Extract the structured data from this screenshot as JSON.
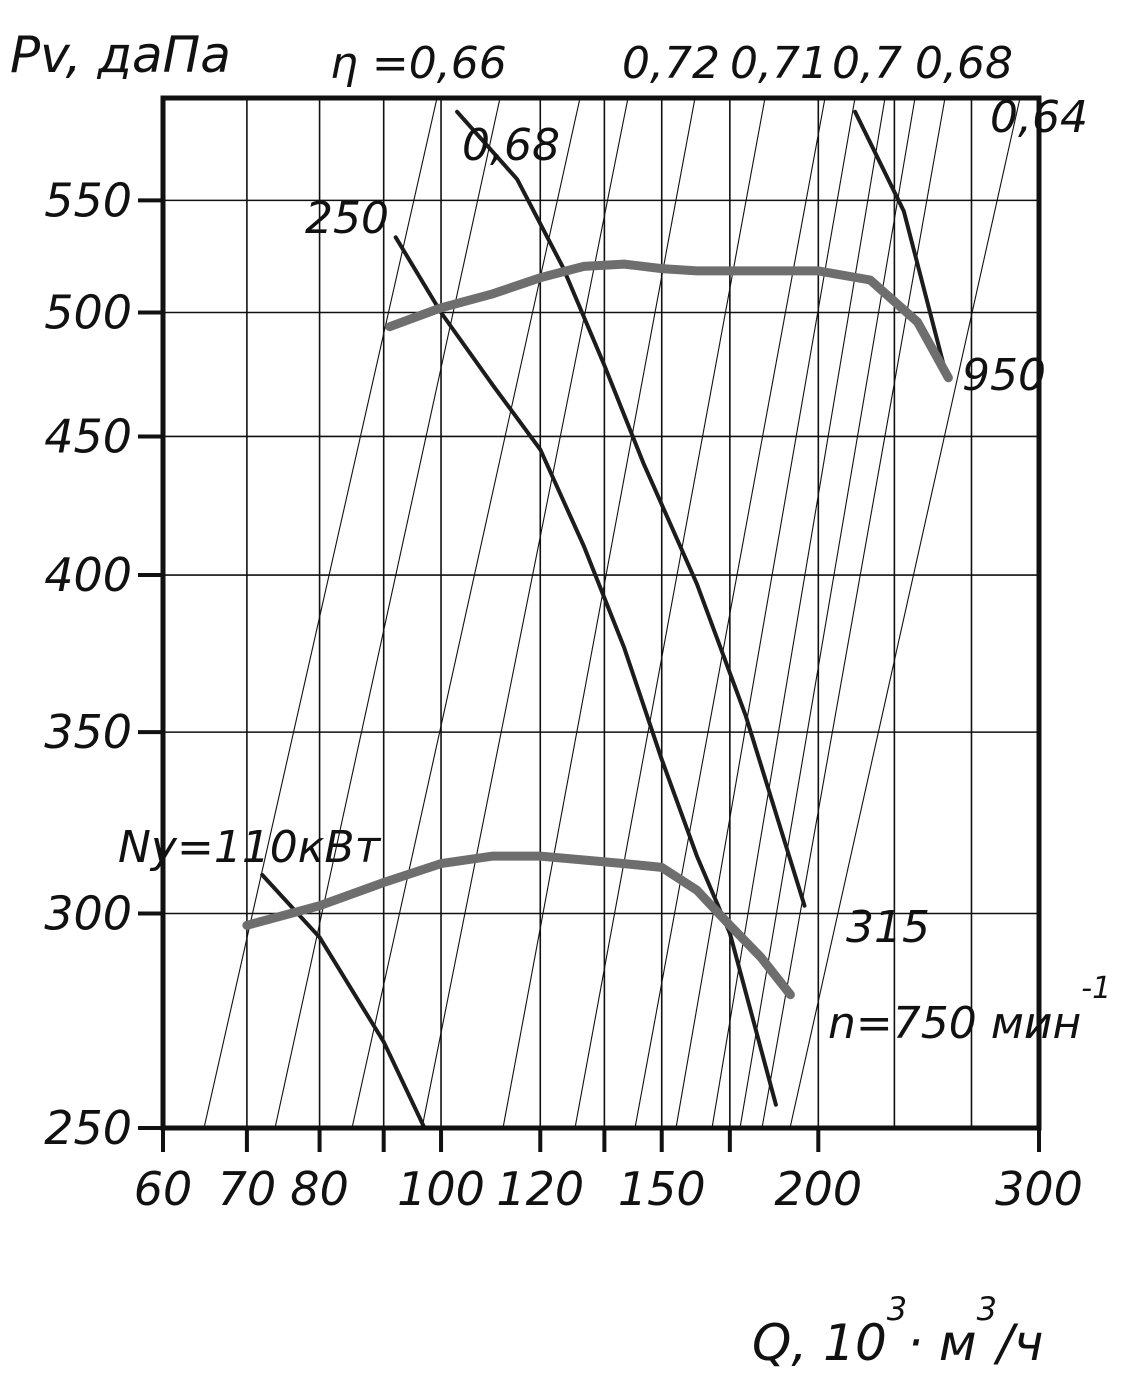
{
  "chart_data": {
    "type": "line",
    "title": "",
    "ylabel": "Pv, даПа",
    "xlabel_parts": {
      "main": "Q, 10",
      "sup1": "3",
      "dot": "·",
      "unit1": " м",
      "sup2": "3",
      "unit2": "/ч"
    },
    "x_scale": "log",
    "y_scale": "log",
    "xlim": [
      60,
      300
    ],
    "ylim": [
      250,
      600
    ],
    "grid": true,
    "x_ticks": [
      60,
      70,
      80,
      90,
      100,
      120,
      135,
      150,
      170,
      200,
      300
    ],
    "x_tick_labels": [
      "60",
      "70",
      "80",
      "",
      "100",
      "120",
      "",
      "150",
      "",
      "200",
      "300"
    ],
    "y_ticks": [
      250,
      300,
      350,
      400,
      450,
      500,
      550
    ],
    "y_tick_labels": [
      "250",
      "300",
      "350",
      "400",
      "450",
      "500",
      "550"
    ],
    "x_grid": [
      70,
      80,
      90,
      100,
      120,
      135,
      150,
      170,
      200,
      230,
      265
    ],
    "y_grid": [
      250,
      300,
      350,
      400,
      450,
      500,
      550
    ],
    "efficiency_label": "η =0,66",
    "efficiency_labels": [
      "0,68",
      "0,72",
      "0,71",
      "0,7",
      "0,68",
      "0,64"
    ],
    "series": [
      {
        "name": "n=750 мин⁻¹",
        "name_main": "n=750 мин",
        "name_sup": "-1",
        "color": "#6e6e6e",
        "x": [
          70,
          80,
          90,
          100,
          110,
          120,
          140,
          150,
          160,
          170,
          180,
          190
        ],
        "y": [
          297,
          302,
          308,
          313,
          315,
          315,
          313,
          312,
          306,
          297,
          289,
          280
        ]
      },
      {
        "name": "950",
        "color": "#6e6e6e",
        "x": [
          91,
          100,
          110,
          120,
          130,
          140,
          150,
          160,
          170,
          180,
          200,
          220,
          240,
          254
        ],
        "y": [
          494,
          502,
          508,
          515,
          520,
          521,
          519,
          518,
          518,
          518,
          518,
          514,
          496,
          473
        ]
      }
    ],
    "power_lines": [
      {
        "label": "Ny=110кВт",
        "x": [
          72,
          80,
          90,
          97
        ],
        "y": [
          310,
          294,
          269,
          250
        ]
      },
      {
        "label": "250",
        "x": [
          92,
          100,
          110,
          120,
          130,
          140,
          150,
          160,
          170,
          185
        ],
        "y": [
          533,
          500,
          470,
          445,
          410,
          376,
          342,
          315,
          295,
          255
        ]
      },
      {
        "label": "315",
        "x": [
          103,
          115,
          125,
          135,
          145,
          160,
          175,
          195
        ],
        "y": [
          593,
          560,
          520,
          478,
          440,
          397,
          355,
          302
        ]
      },
      {
        "label": "",
        "x": [
          214,
          234,
          253
        ],
        "y": [
          593,
          545,
          474
        ]
      }
    ]
  }
}
